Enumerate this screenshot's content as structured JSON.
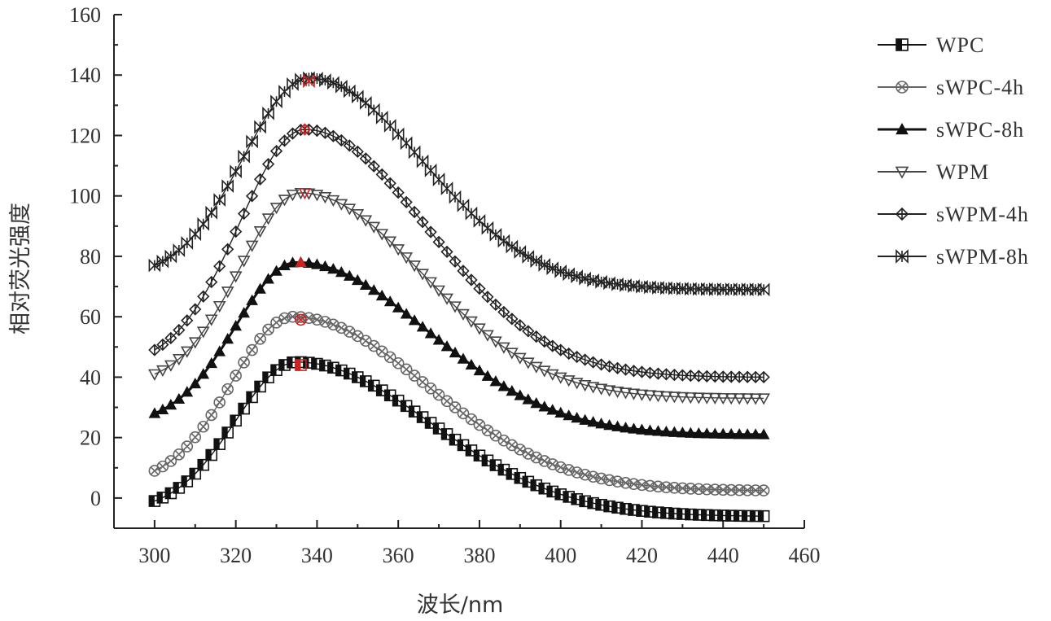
{
  "chart_data": {
    "type": "scatter",
    "xlabel": "波长/nm",
    "ylabel": "相对荧光强度",
    "xlim": [
      290,
      460
    ],
    "ylim": [
      -10,
      160
    ],
    "xticks": [
      300,
      320,
      340,
      360,
      380,
      400,
      420,
      440,
      460
    ],
    "yticks": [
      0,
      20,
      40,
      60,
      80,
      100,
      120,
      140,
      160
    ],
    "grid": false,
    "legend_position": "right",
    "x_start": 300,
    "x_end": 450,
    "x_step": 2,
    "series": [
      {
        "name": "WPC",
        "marker": "half-square",
        "color": "#111111",
        "shape": {
          "base": -1,
          "peak_x": 335,
          "peak_y": 45,
          "tail_y": -6,
          "rise_w": 15,
          "decay_w": 33
        },
        "highlight": {
          "x": 336,
          "y": 44,
          "color": "#cc2222"
        }
      },
      {
        "name": "sWPC-4h",
        "marker": "circle-x",
        "color": "#666666",
        "shape": {
          "base": 9,
          "peak_x": 334,
          "peak_y": 60,
          "tail_y": 2.5,
          "rise_w": 15,
          "decay_w": 33
        },
        "highlight": {
          "x": 336,
          "y": 59,
          "color": "#cc2222"
        }
      },
      {
        "name": "sWPC-8h",
        "marker": "triangle-up",
        "color": "#111111",
        "shape": {
          "base": 28,
          "peak_x": 335,
          "peak_y": 78,
          "tail_y": 21,
          "rise_w": 15,
          "decay_w": 32
        },
        "highlight": {
          "x": 336,
          "y": 78,
          "color": "#cc2222"
        }
      },
      {
        "name": "WPM",
        "marker": "triangle-down",
        "color": "#444444",
        "shape": {
          "base": 41,
          "peak_x": 336,
          "peak_y": 101,
          "tail_y": 33,
          "rise_w": 15,
          "decay_w": 30
        },
        "highlight": {
          "x": 337,
          "y": 101,
          "color": "#cc2222"
        }
      },
      {
        "name": "sWPM-4h",
        "marker": "diamond-cross",
        "color": "#222222",
        "shape": {
          "base": 49,
          "peak_x": 337,
          "peak_y": 122,
          "tail_y": 40,
          "rise_w": 16,
          "decay_w": 30
        },
        "highlight": {
          "x": 337,
          "y": 122,
          "color": "#cc2222"
        }
      },
      {
        "name": "sWPM-8h",
        "marker": "bowtie",
        "color": "#222222",
        "shape": {
          "base": 77,
          "peak_x": 338,
          "peak_y": 139,
          "tail_y": 69,
          "rise_w": 16,
          "decay_w": 28
        },
        "highlight": {
          "x": 338,
          "y": 138,
          "color": "#cc2222"
        }
      }
    ]
  }
}
